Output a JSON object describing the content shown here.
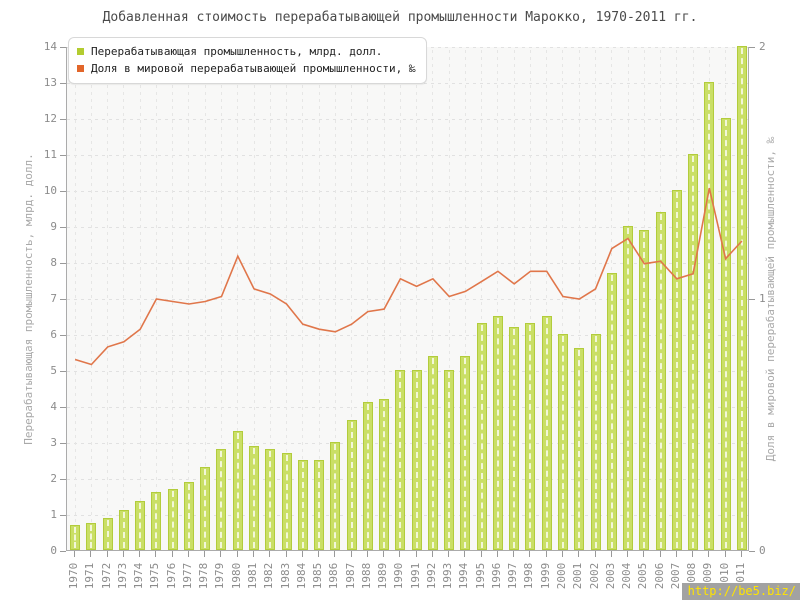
{
  "title": "Добавленная стоимость перерабатывающей промышленности Марокко, 1970-2011 гг.",
  "legend": {
    "bar_label": "Перерабатывающая промышленность, млрд. долл.",
    "line_label": "Доля в мировой перерабатывающей промышленности, ‰",
    "bar_swatch_color": "#b3cc30",
    "line_swatch_color": "#e2662a"
  },
  "watermark": "http://be5.biz/",
  "colors": {
    "bar_fill": "#cadf66",
    "bar_border": "#b2cc3c",
    "line": "#e0764a",
    "plot_bg": "#f8f8f7",
    "axis": "#ababab",
    "tick_text": "#8c8c8c"
  },
  "chart_data": {
    "type": "bar",
    "title": "Добавленная стоимость перерабатывающей промышленности Марокко, 1970-2011 гг.",
    "categories": [
      1970,
      1971,
      1972,
      1973,
      1974,
      1975,
      1976,
      1977,
      1978,
      1979,
      1980,
      1981,
      1982,
      1983,
      1984,
      1985,
      1986,
      1987,
      1988,
      1989,
      1990,
      1991,
      1992,
      1993,
      1994,
      1995,
      1996,
      1997,
      1998,
      1999,
      2000,
      2001,
      2002,
      2003,
      2004,
      2005,
      2006,
      2007,
      2008,
      2009,
      2010,
      2011
    ],
    "series": [
      {
        "name": "Перерабатывающая промышленность, млрд. долл.",
        "type": "bar",
        "axis": "left",
        "values": [
          0.7,
          0.75,
          0.9,
          1.1,
          1.35,
          1.6,
          1.7,
          1.9,
          2.3,
          2.8,
          3.3,
          2.9,
          2.8,
          2.7,
          2.5,
          2.5,
          3.0,
          3.6,
          4.1,
          4.2,
          5.0,
          5.0,
          5.4,
          5.0,
          5.4,
          6.3,
          6.5,
          6.2,
          6.3,
          6.5,
          6.0,
          5.6,
          6.0,
          7.7,
          9.0,
          8.9,
          9.4,
          10.0,
          11.0,
          13.0,
          12.0,
          14.0
        ]
      },
      {
        "name": "Доля в мировой перерабатывающей промышленности, ‰",
        "type": "line",
        "axis": "right",
        "values": [
          0.76,
          0.74,
          0.81,
          0.83,
          0.88,
          1.0,
          0.99,
          0.98,
          0.99,
          1.01,
          1.17,
          1.04,
          1.02,
          0.98,
          0.9,
          0.88,
          0.87,
          0.9,
          0.95,
          0.96,
          1.08,
          1.05,
          1.08,
          1.01,
          1.03,
          1.07,
          1.11,
          1.06,
          1.11,
          1.11,
          1.01,
          1.0,
          1.04,
          1.2,
          1.24,
          1.14,
          1.15,
          1.08,
          1.1,
          1.44,
          1.16,
          1.23
        ]
      }
    ],
    "left_axis": {
      "label": "Перерабатывающая промышленность, млрд. долл.",
      "min": 0,
      "max": 14,
      "ticks": [
        0,
        1,
        2,
        3,
        4,
        5,
        6,
        7,
        8,
        9,
        10,
        11,
        12,
        13,
        14
      ]
    },
    "right_axis": {
      "label": "Доля в мировой перерабатывающей промышленности, ‰",
      "min": 0,
      "max": 2,
      "ticks": [
        0,
        1,
        2
      ]
    },
    "grid": true,
    "legend_position": "top-left"
  }
}
